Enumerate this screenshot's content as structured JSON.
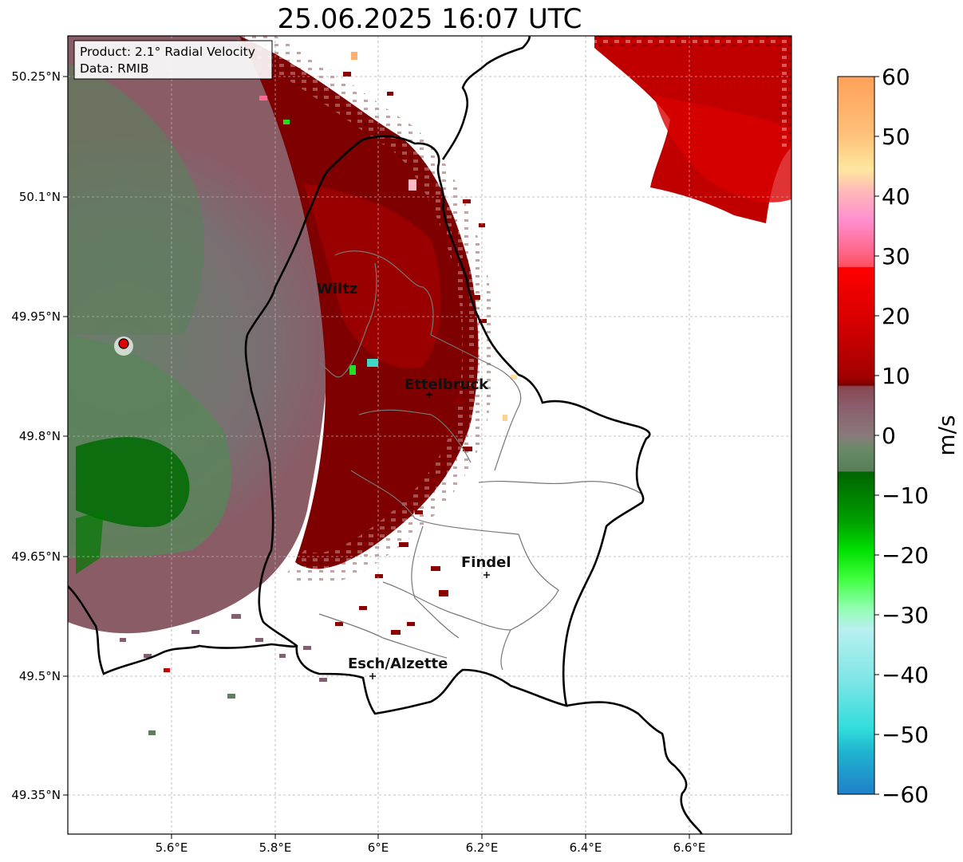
{
  "title": "25.06.2025 16:07 UTC",
  "info_box": {
    "line1": "Product: 2.1° Radial Velocity",
    "line2": "Data: RMIB"
  },
  "axes": {
    "lon_ticks": [
      "5.6°E",
      "5.8°E",
      "6°E",
      "6.2°E",
      "6.4°E",
      "6.6°E"
    ],
    "lat_ticks": [
      "50.25°N",
      "50.1°N",
      "49.95°N",
      "49.8°N",
      "49.65°N",
      "49.5°N",
      "49.35°N"
    ]
  },
  "places": [
    {
      "name": "Wiltz"
    },
    {
      "name": "Ettelbruck"
    },
    {
      "name": "Findel"
    },
    {
      "name": "Esch/Alzette"
    }
  ],
  "colorbar": {
    "label": "m/s",
    "ticks": [
      "60",
      "50",
      "40",
      "30",
      "20",
      "10",
      "0",
      "−10",
      "−20",
      "−30",
      "−40",
      "−50",
      "−60"
    ],
    "min": -60,
    "max": 60
  },
  "colors": {
    "outbound_dark": "#7a0000",
    "outbound": "#c80000",
    "near_zero_red": "#8a5a66",
    "near_zero_green": "#5e8a5e",
    "inbound": "#006400",
    "border": "#000000",
    "radar_site": "#e00000"
  }
}
